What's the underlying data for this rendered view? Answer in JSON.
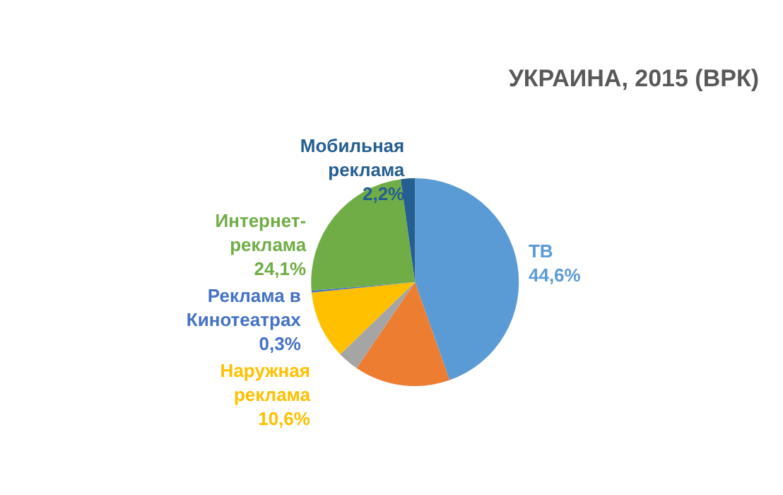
{
  "chart_data": {
    "type": "pie",
    "title": "УКРАИНА, 2015 (ВРК)",
    "categories": [
      "ТВ",
      null,
      null,
      "Наружная реклама",
      "Реклама в Кинотеатрах",
      "Интернет-реклама",
      "Мобильная реклама"
    ],
    "values": [
      44.6,
      14.9,
      3.3,
      10.6,
      0.3,
      24.1,
      2.2
    ],
    "value_labels": [
      "44,6%",
      null,
      null,
      "10,6%",
      "0,3%",
      "24,1%",
      "2,2%"
    ],
    "colors": [
      "#5b9bd5",
      "#ed7d31",
      "#a5a5a5",
      "#ffc000",
      "#4472c4",
      "#70ad47",
      "#255e91"
    ],
    "legend": false
  }
}
